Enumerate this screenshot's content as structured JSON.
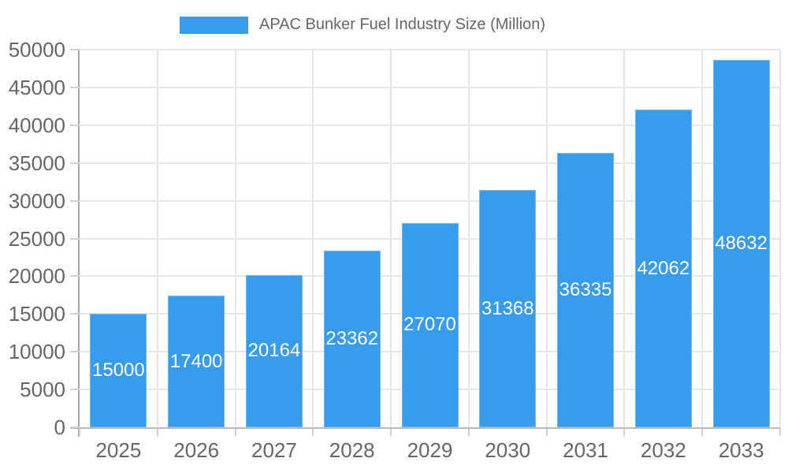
{
  "legend": {
    "label": "APAC Bunker Fuel Industry Size (Million)"
  },
  "chart_data": {
    "type": "bar",
    "title": "APAC Bunker Fuel Industry Size (Million)",
    "categories": [
      "2025",
      "2026",
      "2027",
      "2028",
      "2029",
      "2030",
      "2031",
      "2032",
      "2033"
    ],
    "values": [
      15000,
      17400,
      20164,
      23362,
      27070,
      31368,
      36335,
      42062,
      48632
    ],
    "xlabel": "",
    "ylabel": "",
    "ylim": [
      0,
      50000
    ],
    "ytick_step": 5000,
    "ytick_labels": [
      "0",
      "5000",
      "10000",
      "15000",
      "20000",
      "25000",
      "30000",
      "35000",
      "40000",
      "45000",
      "50000"
    ],
    "grid": true,
    "legend_position": "top",
    "value_labels": "inside-center",
    "colors": {
      "bar": "#389CEC",
      "bar_border": "#6FB7F0",
      "value_label_text": "#FFFFFF",
      "axis_text": "#666666",
      "gridline": "#E6E6E6",
      "y_axis_line": "#A6A6A6",
      "x_axis_line": "#B9B9B9",
      "tick": "#CFCFCF",
      "background": "#FFFFFF"
    }
  }
}
